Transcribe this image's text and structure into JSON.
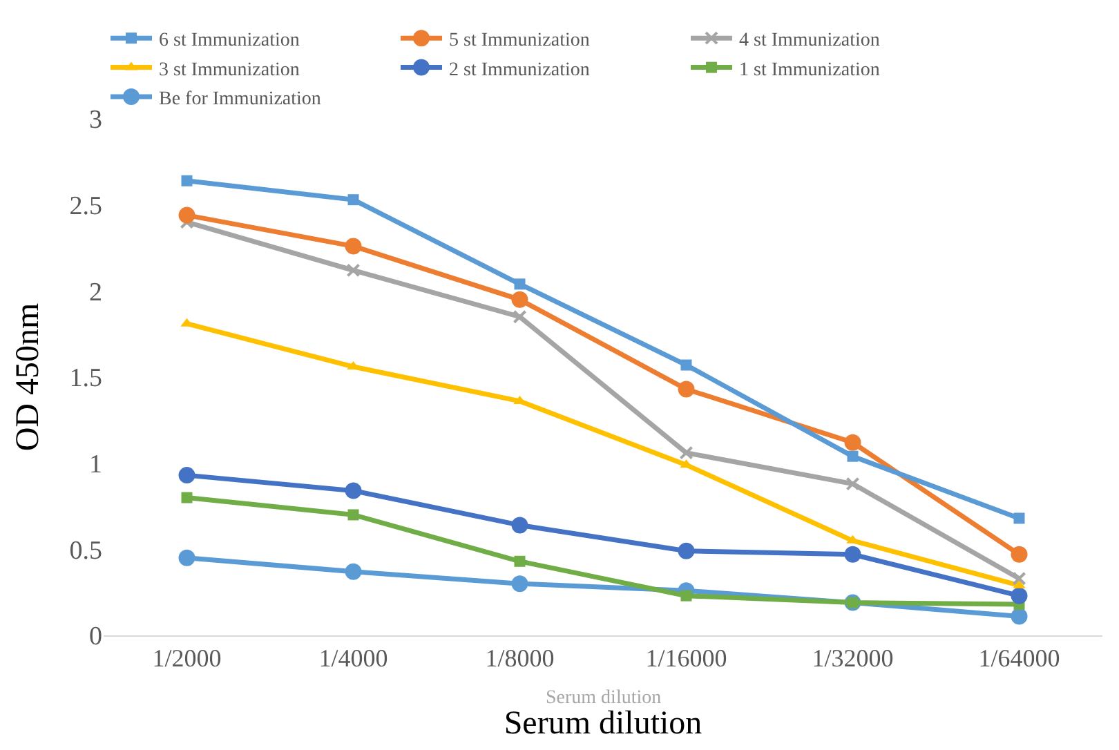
{
  "chart_data": {
    "type": "line",
    "xlabel": "Serum dilution",
    "ylabel": "OD 450nm",
    "categories": [
      "1/2000",
      "1/4000",
      "1/8000",
      "1/16000",
      "1/32000",
      "1/64000"
    ],
    "series": [
      {
        "name": "6 st Immunization",
        "color": "#5b9bd5",
        "marker": "square",
        "values": [
          2.64,
          2.53,
          2.04,
          1.57,
          1.04,
          0.68
        ]
      },
      {
        "name": "5 st Immunization",
        "color": "#ed7d31",
        "marker": "circle",
        "values": [
          2.44,
          2.26,
          1.95,
          1.43,
          1.12,
          0.47
        ]
      },
      {
        "name": "4 st Immunization",
        "color": "#a5a5a5",
        "marker": "cross",
        "values": [
          2.4,
          2.12,
          1.85,
          1.06,
          0.88,
          0.33
        ]
      },
      {
        "name": "3 st Immunization",
        "color": "#ffc000",
        "marker": "triangle",
        "values": [
          1.81,
          1.56,
          1.36,
          0.99,
          0.55,
          0.29
        ]
      },
      {
        "name": "2 st Immunization",
        "color": "#4472c4",
        "marker": "circle",
        "values": [
          0.93,
          0.84,
          0.64,
          0.49,
          0.47,
          0.23
        ]
      },
      {
        "name": "1 st Immunization",
        "color": "#70ad47",
        "marker": "square",
        "values": [
          0.8,
          0.7,
          0.43,
          0.23,
          0.19,
          0.18
        ]
      },
      {
        "name": "Be for Immunization",
        "color": "#5b9bd5",
        "marker": "circle",
        "values": [
          0.45,
          0.37,
          0.3,
          0.26,
          0.19,
          0.11
        ]
      }
    ],
    "ylim": [
      0,
      3
    ],
    "yticks": [
      0,
      0.5,
      1,
      1.5,
      2,
      2.5,
      3
    ],
    "grid": false,
    "legend": "top",
    "line_style": "solid",
    "annotations": [
      "Serum dilution"
    ]
  }
}
